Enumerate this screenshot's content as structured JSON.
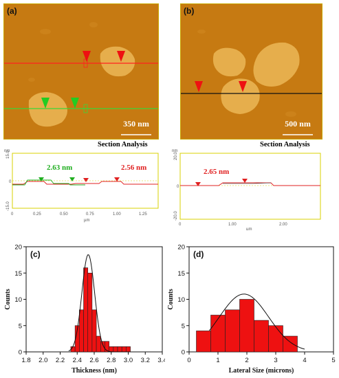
{
  "panels": {
    "a": {
      "label": "(a)",
      "scale_bar": "350 nm"
    },
    "b": {
      "label": "(b)",
      "scale_bar": "500 nm"
    }
  },
  "section_a": {
    "title": "Section Analysis",
    "unit_top": "nm",
    "unit_x": "µm",
    "y_ticks": [
      "15.0",
      "0",
      "-15.0"
    ],
    "x_ticks": [
      "0",
      "0.25",
      "0.50",
      "0.75",
      "1.00",
      "1.25"
    ],
    "anno_green": "2.63 nm",
    "anno_red": "2.56 nm",
    "colors": {
      "green": "#1fae1f",
      "red": "#e02020"
    }
  },
  "section_b": {
    "title": "Section Analysis",
    "unit_top": "nm",
    "unit_x": "µm",
    "y_ticks": [
      "20.0",
      "0",
      "-20.0"
    ],
    "x_ticks": [
      "0",
      "1.00",
      "2.00"
    ],
    "anno_red": "2.65 nm",
    "colors": {
      "red": "#e02020"
    }
  },
  "chart_data": [
    {
      "label": "(c)",
      "type": "bar",
      "xlabel": "Thickness (nm)",
      "ylabel": "Counts",
      "xlim": [
        1.8,
        3.4
      ],
      "ylim": [
        0,
        20
      ],
      "x_ticks": [
        "1.8",
        "2.0",
        "2.2",
        "2.4",
        "2.6",
        "2.8",
        "3.0",
        "3.2",
        "3.4"
      ],
      "y_ticks": [
        "0",
        "5",
        "10",
        "15",
        "20"
      ],
      "bin_width": 0.05,
      "bins": [
        {
          "x": 2.35,
          "value": 1
        },
        {
          "x": 2.4,
          "value": 5
        },
        {
          "x": 2.45,
          "value": 8
        },
        {
          "x": 2.5,
          "value": 16
        },
        {
          "x": 2.55,
          "value": 15
        },
        {
          "x": 2.6,
          "value": 8
        },
        {
          "x": 2.65,
          "value": 3
        },
        {
          "x": 2.7,
          "value": 2
        },
        {
          "x": 2.75,
          "value": 2
        },
        {
          "x": 2.8,
          "value": 1
        },
        {
          "x": 2.85,
          "value": 1
        },
        {
          "x": 2.9,
          "value": 1
        },
        {
          "x": 2.95,
          "value": 1
        },
        {
          "x": 3.0,
          "value": 1
        }
      ],
      "fit_curve": {
        "mean": 2.53,
        "sigma": 0.075,
        "peak": 18.5,
        "range": [
          2.3,
          3.05
        ]
      },
      "bar_color": "#ee1111"
    },
    {
      "label": "(d)",
      "type": "bar",
      "xlabel": "Lateral Size (microns)",
      "ylabel": "Counts",
      "xlim": [
        0,
        5
      ],
      "ylim": [
        0,
        20
      ],
      "x_ticks": [
        "0",
        "1",
        "2",
        "3",
        "4",
        "5"
      ],
      "y_ticks": [
        "0",
        "5",
        "10",
        "15",
        "20"
      ],
      "bin_width": 0.5,
      "bins": [
        {
          "x": 0.5,
          "value": 4
        },
        {
          "x": 1.0,
          "value": 7
        },
        {
          "x": 1.5,
          "value": 8
        },
        {
          "x": 2.0,
          "value": 10
        },
        {
          "x": 2.5,
          "value": 6
        },
        {
          "x": 3.0,
          "value": 5
        },
        {
          "x": 3.5,
          "value": 3
        }
      ],
      "fit_curve": {
        "mean": 1.9,
        "sigma": 0.85,
        "peak": 11.0,
        "range": [
          0.7,
          4.0
        ]
      },
      "bar_color": "#ee1111"
    }
  ]
}
